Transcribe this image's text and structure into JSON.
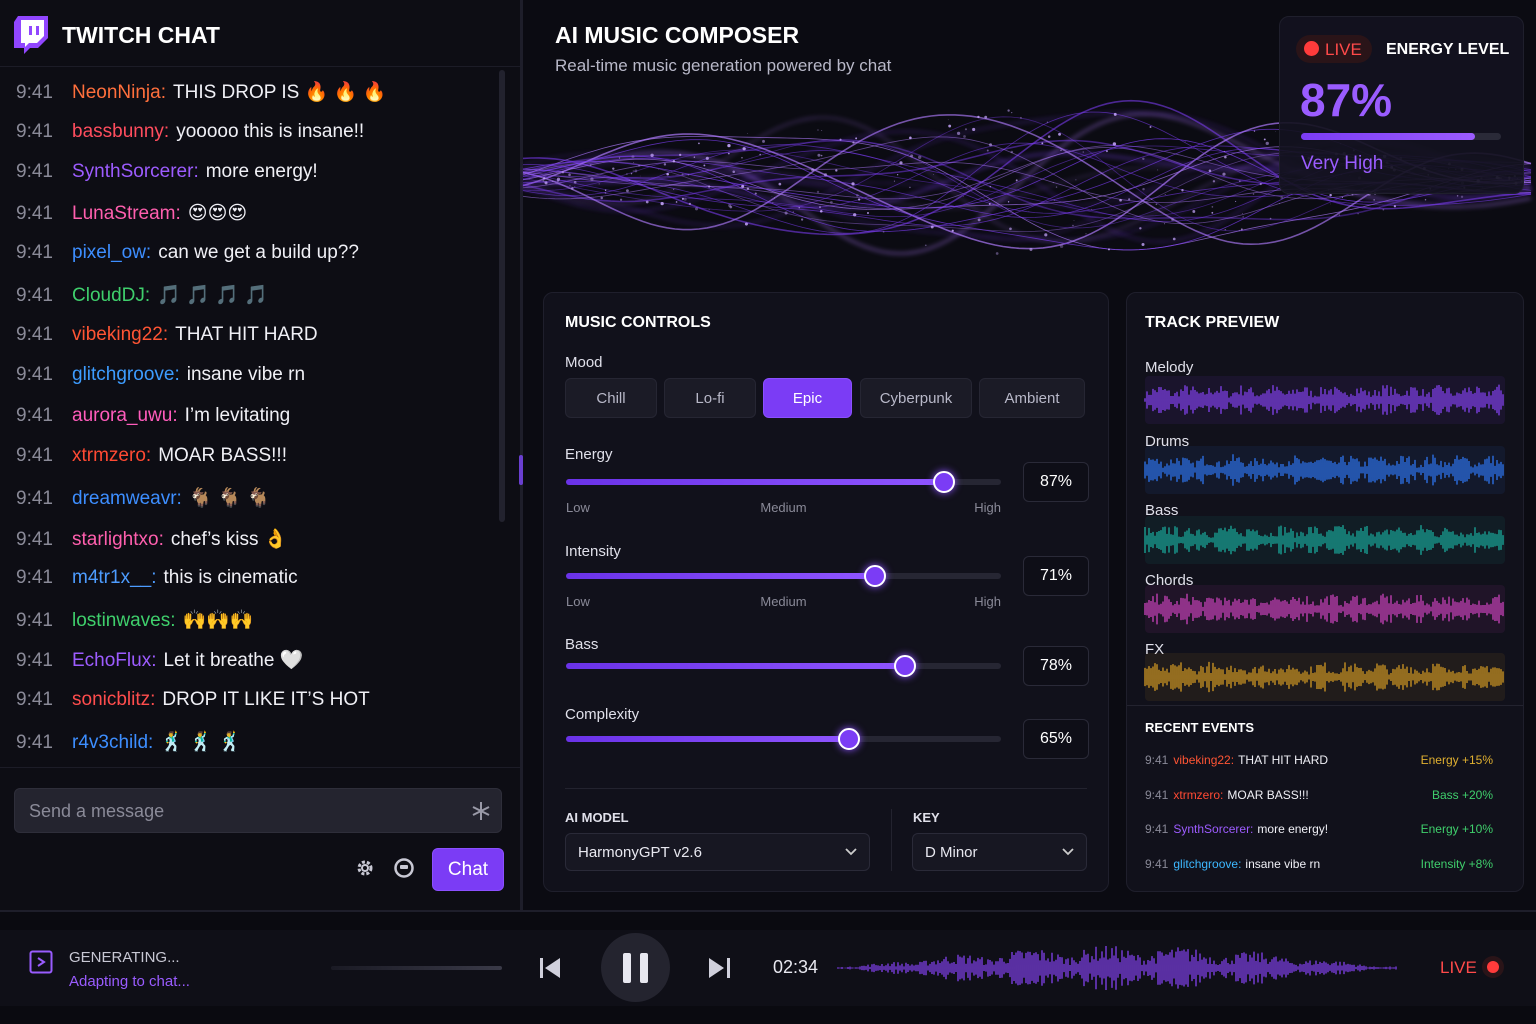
{
  "chat": {
    "title": "TWITCH CHAT",
    "messages": [
      {
        "time": "9:41",
        "user": "NeonNinja:",
        "color": "#ff6f3c",
        "text": "THIS DROP IS 🔥 🔥 🔥"
      },
      {
        "time": "9:41",
        "user": "bassbunny:",
        "color": "#ff4d5e",
        "text": "yooooo this is insane!!"
      },
      {
        "time": "9:41",
        "user": "SynthSorcerer:",
        "color": "#9d5cff",
        "text": "more energy!"
      },
      {
        "time": "9:41",
        "user": "LunaStream:",
        "color": "#ff5fae",
        "text": "😍😍😍"
      },
      {
        "time": "9:41",
        "user": "pixel_ow:",
        "color": "#3d8eff",
        "text": "can we get a build up??"
      },
      {
        "time": "9:41",
        "user": "CloudDJ:",
        "color": "#3fcf6c",
        "text": "🎵 🎵 🎵 🎵"
      },
      {
        "time": "9:41",
        "user": "vibeking22:",
        "color": "#ff5534",
        "text": "THAT HIT HARD"
      },
      {
        "time": "9:41",
        "user": "glitchgroove:",
        "color": "#3d9cff",
        "text": "insane vibe rn"
      },
      {
        "time": "9:41",
        "user": "aurora_uwu:",
        "color": "#ff5cbc",
        "text": "I’m levitating"
      },
      {
        "time": "9:41",
        "user": "xtrmzero:",
        "color": "#ff4a33",
        "text": "MOAR BASS!!!"
      },
      {
        "time": "9:41",
        "user": "dreamweavr:",
        "color": "#3d8eff",
        "text": "🐐 🐐 🐐"
      },
      {
        "time": "9:41",
        "user": "starlightxo:",
        "color": "#ff5fae",
        "text": "chef’s kiss 👌"
      },
      {
        "time": "9:41",
        "user": "m4tr1x__:",
        "color": "#4d9cff",
        "text": "this is cinematic"
      },
      {
        "time": "9:41",
        "user": "lostinwaves:",
        "color": "#3fcf6c",
        "text": "🙌🙌🙌"
      },
      {
        "time": "9:41",
        "user": "EchoFlux:",
        "color": "#9d5cff",
        "text": "Let it breathe 🤍"
      },
      {
        "time": "9:41",
        "user": "sonicblitz:",
        "color": "#ff4d4d",
        "text": "DROP IT LIKE IT’S HOT"
      },
      {
        "time": "9:41",
        "user": "r4v3child:",
        "color": "#3d8eff",
        "text": "🕺 🕺 🕺"
      }
    ],
    "input_placeholder": "Send a message",
    "send": "Chat"
  },
  "header": {
    "title": "AI MUSIC COMPOSER",
    "subtitle": "Real-time music generation powered by chat"
  },
  "energy": {
    "live": "LIVE",
    "title": "ENERGY LEVEL",
    "value": 87,
    "label": "87%",
    "status": "Very High"
  },
  "controls": {
    "title": "MUSIC CONTROLS",
    "mood_label": "Mood",
    "moods": [
      "Chill",
      "Lo-fi",
      "Epic",
      "Cyberpunk",
      "Ambient"
    ],
    "active_mood": "Epic",
    "sliders": [
      {
        "name": "Energy",
        "value": 87,
        "label": "87%",
        "scale": [
          "Low",
          "Medium",
          "High"
        ]
      },
      {
        "name": "Intensity",
        "value": 71,
        "label": "71%",
        "scale": [
          "Low",
          "Medium",
          "High"
        ]
      },
      {
        "name": "Bass",
        "value": 78,
        "label": "78%"
      },
      {
        "name": "Complexity",
        "value": 65,
        "label": "65%"
      }
    ],
    "model_label": "AI MODEL",
    "model": "HarmonyGPT v2.6",
    "key_label": "KEY",
    "key": "D Minor"
  },
  "preview": {
    "title": "TRACK PREVIEW",
    "tracks": [
      {
        "name": "Melody",
        "color": "#8b45ff"
      },
      {
        "name": "Drums",
        "color": "#2f7dff"
      },
      {
        "name": "Bass",
        "color": "#1bb5a5"
      },
      {
        "name": "Chords",
        "color": "#d946c8"
      },
      {
        "name": "FX",
        "color": "#e0a323"
      }
    ]
  },
  "events": {
    "title": "RECENT EVENTS",
    "items": [
      {
        "time": "9:41",
        "user": "vibeking22:",
        "user_color": "#ff5534",
        "text": "THAT HIT HARD",
        "effect": "Energy +15%",
        "effect_color": "#e0b030"
      },
      {
        "time": "9:41",
        "user": "xtrmzero:",
        "user_color": "#ff4a33",
        "text": "MOAR BASS!!!",
        "effect": "Bass +20%",
        "effect_color": "#3fcf6c"
      },
      {
        "time": "9:41",
        "user": "SynthSorcerer:",
        "user_color": "#9d5cff",
        "text": "more energy!",
        "effect": "Energy +10%",
        "effect_color": "#3fcf6c"
      },
      {
        "time": "9:41",
        "user": "glitchgroove:",
        "user_color": "#3db8ff",
        "text": "insane vibe rn",
        "effect": "Intensity +8%",
        "effect_color": "#3fcf6c"
      }
    ]
  },
  "player": {
    "status": "GENERATING...",
    "detail": "Adapting to chat...",
    "time": "02:34",
    "live": "LIVE"
  }
}
